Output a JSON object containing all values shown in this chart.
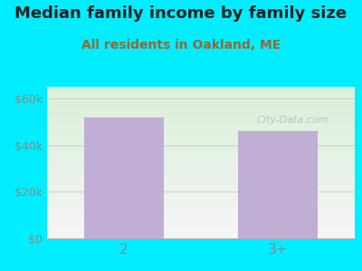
{
  "title": "Median family income by family size",
  "subtitle": "All residents in Oakland, ME",
  "categories": [
    "2",
    "3+"
  ],
  "values": [
    52000,
    46000
  ],
  "bar_color": "#c0aed4",
  "background_outer": "#00eeff",
  "title_fontsize": 13,
  "subtitle_fontsize": 10,
  "ylabel_ticks": [
    0,
    20000,
    40000,
    60000
  ],
  "ylim": [
    0,
    65000
  ],
  "watermark": "City-Data.com",
  "tick_color": "#888888",
  "title_color": "#222222",
  "subtitle_color": "#996633"
}
